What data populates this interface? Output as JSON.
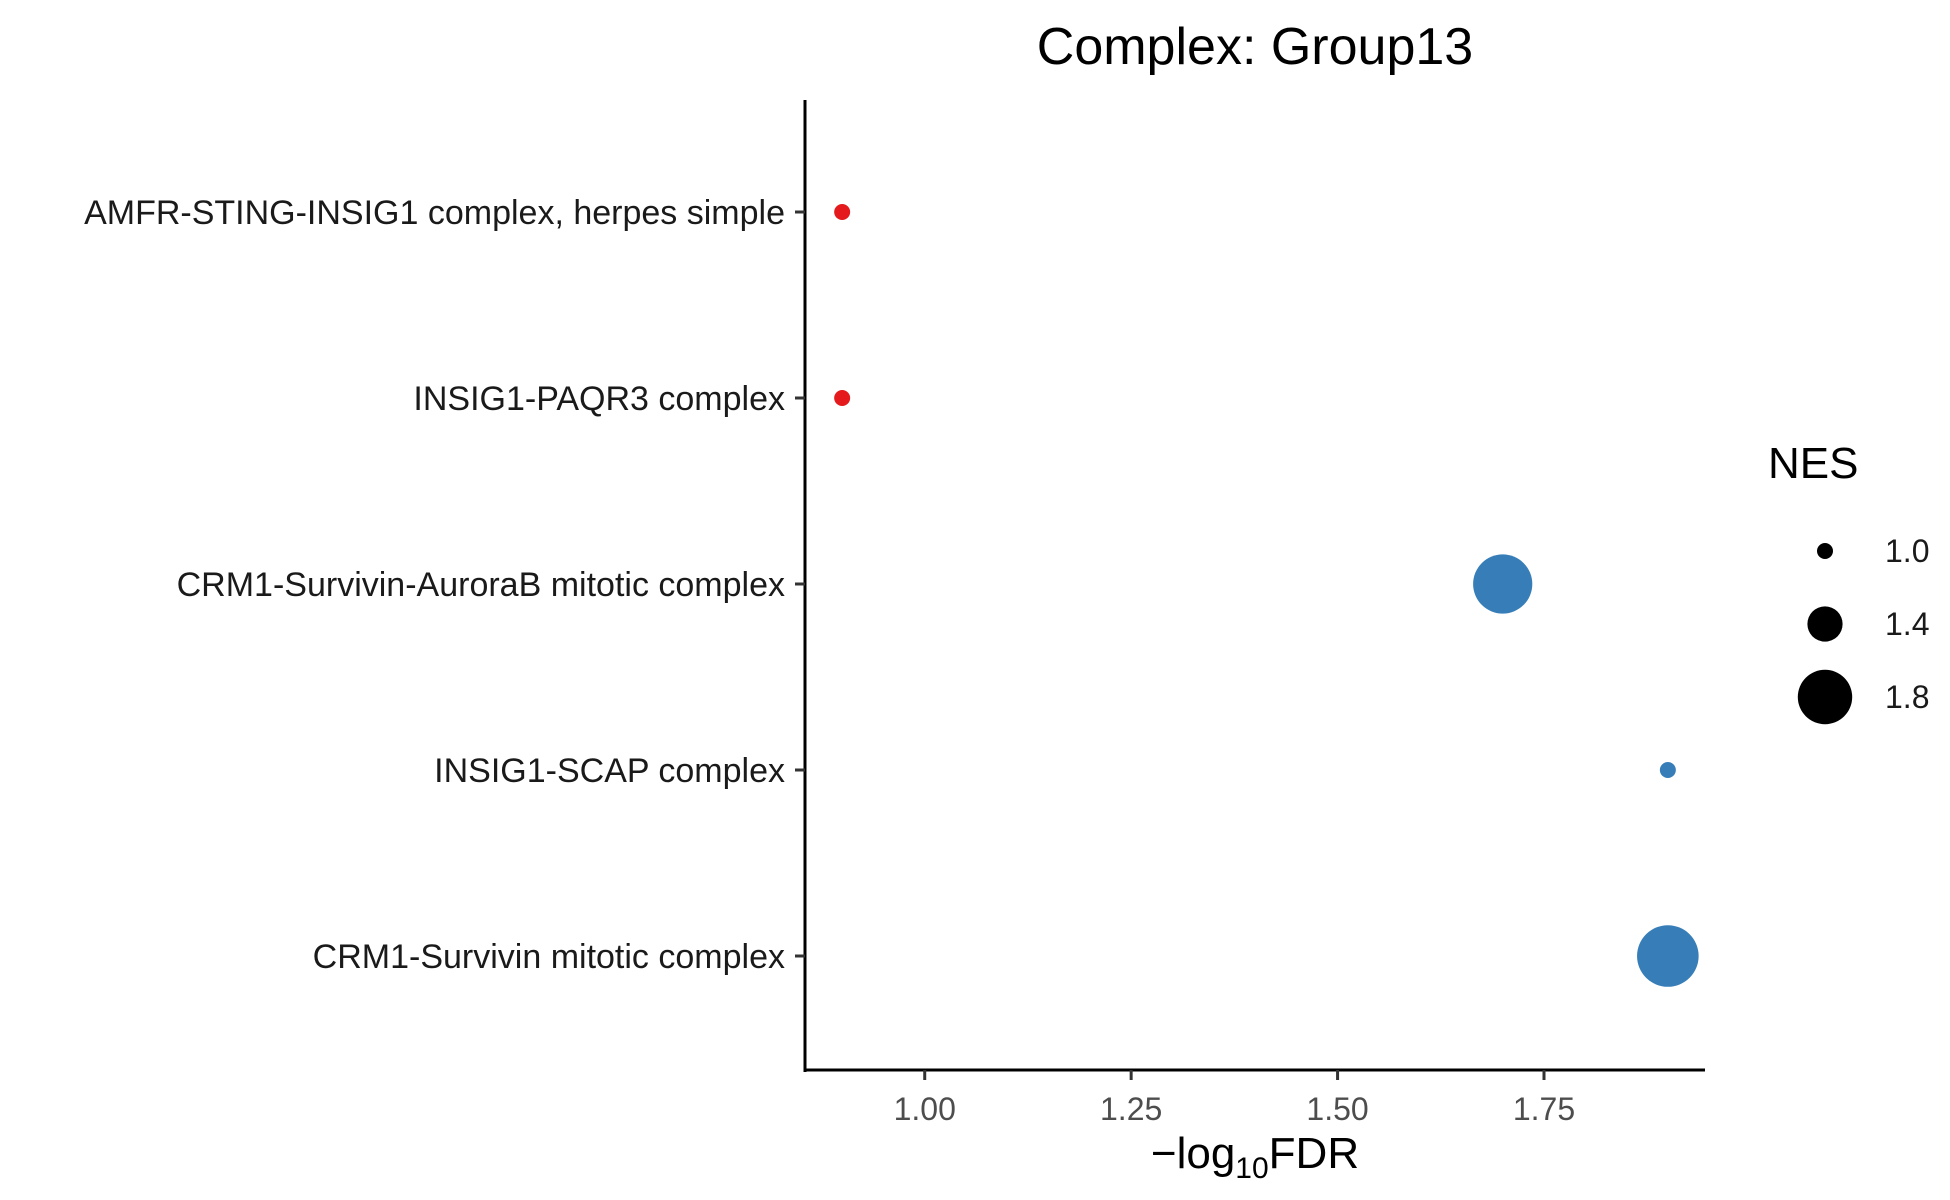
{
  "chart_data": {
    "type": "scatter",
    "title": "Complex: Group13",
    "xlabel": {
      "prefix": "−log",
      "subscript": "10",
      "suffix": "FDR"
    },
    "ylabel": "",
    "xlim": [
      0.855,
      1.945
    ],
    "xticks": [
      1.0,
      1.25,
      1.5,
      1.75
    ],
    "xtick_labels": [
      "1.00",
      "1.25",
      "1.50",
      "1.75"
    ],
    "categories": [
      "AMFR-STING-INSIG1 complex, herpes simple",
      "INSIG1-PAQR3 complex",
      "CRM1-Survivin-AuroraB mitotic complex",
      "INSIG1-SCAP complex",
      "CRM1-Survivin mitotic complex"
    ],
    "points": [
      {
        "category": "AMFR-STING-INSIG1 complex, herpes simple",
        "x": 0.9,
        "nes": -1.0,
        "color": "#E41A1C"
      },
      {
        "category": "INSIG1-PAQR3 complex",
        "x": 0.9,
        "nes": -1.0,
        "color": "#E41A1C"
      },
      {
        "category": "CRM1-Survivin-AuroraB mitotic complex",
        "x": 1.7,
        "nes": 1.9,
        "color": "#377EB8"
      },
      {
        "category": "INSIG1-SCAP complex",
        "x": 1.9,
        "nes": 1.0,
        "color": "#377EB8"
      },
      {
        "category": "CRM1-Survivin mitotic complex",
        "x": 1.9,
        "nes": 1.95,
        "color": "#377EB8"
      }
    ],
    "legend": {
      "title": "NES",
      "position": "right",
      "entries": [
        {
          "label": "1.0",
          "value": 1.0
        },
        {
          "label": "1.4",
          "value": 1.4
        },
        {
          "label": "1.8",
          "value": 1.8
        }
      ]
    },
    "grid": false
  }
}
